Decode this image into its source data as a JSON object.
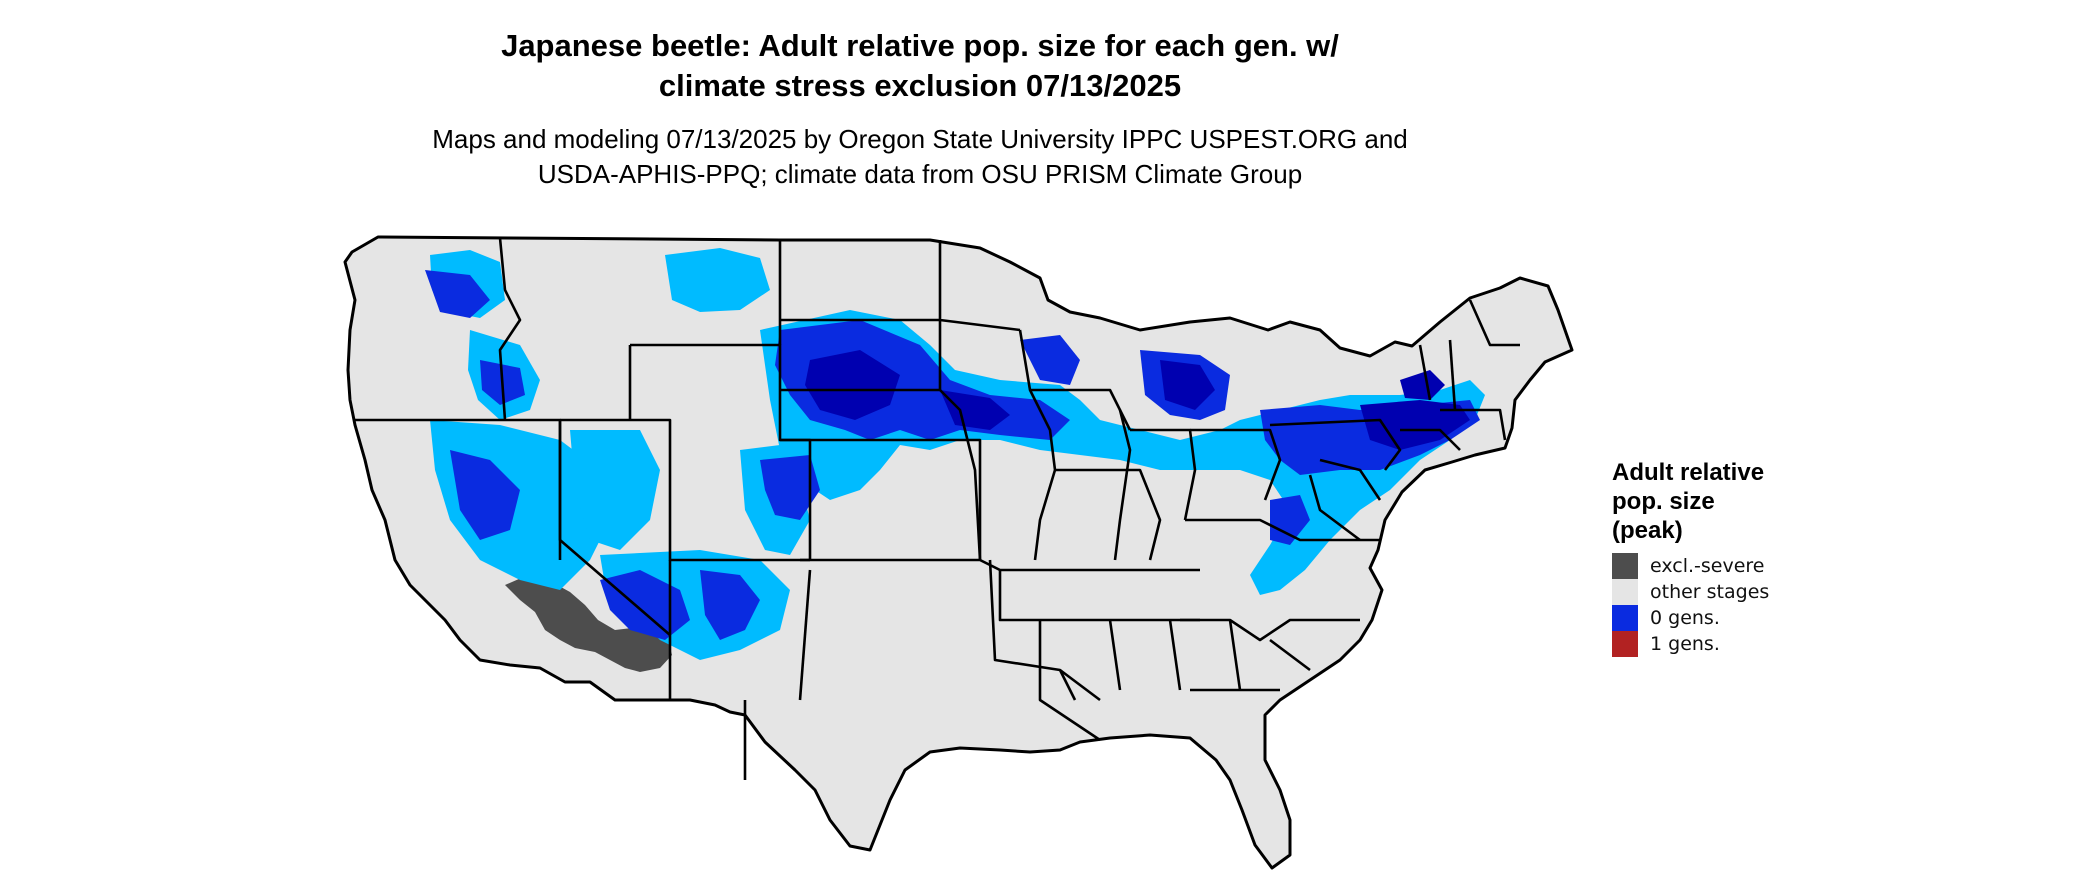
{
  "header": {
    "title_line1": "Japanese beetle: Adult relative pop. size for each gen. w/",
    "title_line2": "climate stress exclusion 07/13/2025",
    "subtitle_line1": "Maps and modeling 07/13/2025 by Oregon State University IPPC USPEST.ORG and",
    "subtitle_line2": "USDA-APHIS-PPQ; climate data from OSU PRISM Climate Group"
  },
  "legend": {
    "title": "Adult relative pop. size (peak)",
    "items": [
      {
        "label": "excl.-severe",
        "color": "#4d4d4d"
      },
      {
        "label": "other stages",
        "color": "#e5e5e5"
      },
      {
        "label": "0 gens.",
        "color": "#0a2be0"
      },
      {
        "label": "1 gens.",
        "color": "#b22222"
      }
    ]
  },
  "map": {
    "region": "Conterminous United States",
    "colors": {
      "land": "#e5e5e5",
      "border": "#000000",
      "excluded": "#4d4d4d",
      "light_blue": "#00bbff",
      "mid_blue": "#0a2be0",
      "dark_blue": "#0000b0"
    }
  }
}
